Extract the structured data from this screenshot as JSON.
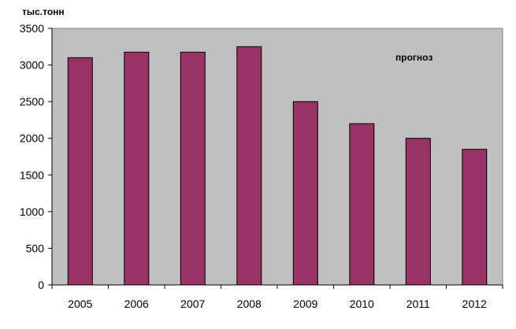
{
  "chart_data": {
    "type": "bar",
    "title": "",
    "xlabel": "",
    "ylabel": "",
    "unit_label": "тыс.тонн",
    "annotation": "прогноз",
    "categories": [
      "2005",
      "2006",
      "2007",
      "2008",
      "2009",
      "2010",
      "2011",
      "2012"
    ],
    "values": [
      3100,
      3175,
      3175,
      3250,
      2500,
      2200,
      2000,
      1850
    ],
    "ylim": [
      0,
      3500
    ],
    "yticks": [
      0,
      500,
      1000,
      1500,
      2000,
      2500,
      3000,
      3500
    ],
    "grid": false,
    "legend": "none",
    "colors": {
      "bar": "#993366",
      "plot_background": "#c0c0c0",
      "frame": "#808080",
      "axis": "#000000"
    }
  }
}
